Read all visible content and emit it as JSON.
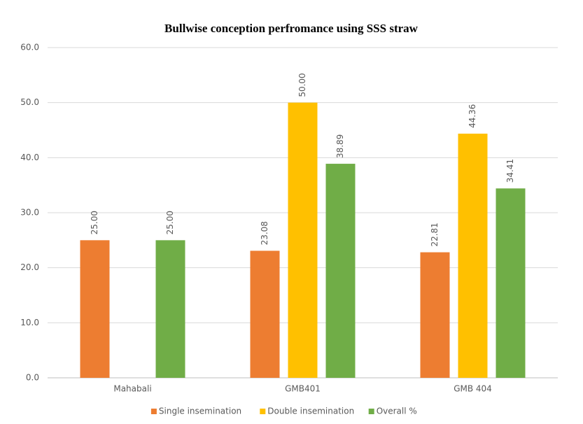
{
  "chart_data": {
    "type": "bar",
    "title": "Bullwise conception perfromance using SSS straw",
    "categories": [
      "Mahabali",
      "GMB401",
      "GMB 404"
    ],
    "series": [
      {
        "name": "Single insemination",
        "color": "#ed7d31",
        "values": [
          25,
          23.08,
          22.81
        ],
        "value_labels": [
          "25.00",
          "23.08",
          "22.81"
        ]
      },
      {
        "name": "Double insemination",
        "color": "#ffc000",
        "values": [
          null,
          50,
          44.36
        ],
        "value_labels": [
          null,
          "50.00",
          "44.36"
        ]
      },
      {
        "name": "Overall %",
        "color": "#70ad47",
        "values": [
          25,
          38.89,
          34.41
        ],
        "value_labels": [
          "25.00",
          "38.89",
          "34.41"
        ]
      }
    ],
    "ylim": [
      0,
      60
    ],
    "yticks": [
      {
        "value": 0,
        "label": "0.0"
      },
      {
        "value": 10,
        "label": "10.0"
      },
      {
        "value": 20,
        "label": "20.0"
      },
      {
        "value": 30,
        "label": "30.0"
      },
      {
        "value": 40,
        "label": "40.0"
      },
      {
        "value": 50,
        "label": "50.0"
      },
      {
        "value": 60,
        "label": "60.0"
      }
    ],
    "grid": true,
    "legend": "bottom"
  }
}
